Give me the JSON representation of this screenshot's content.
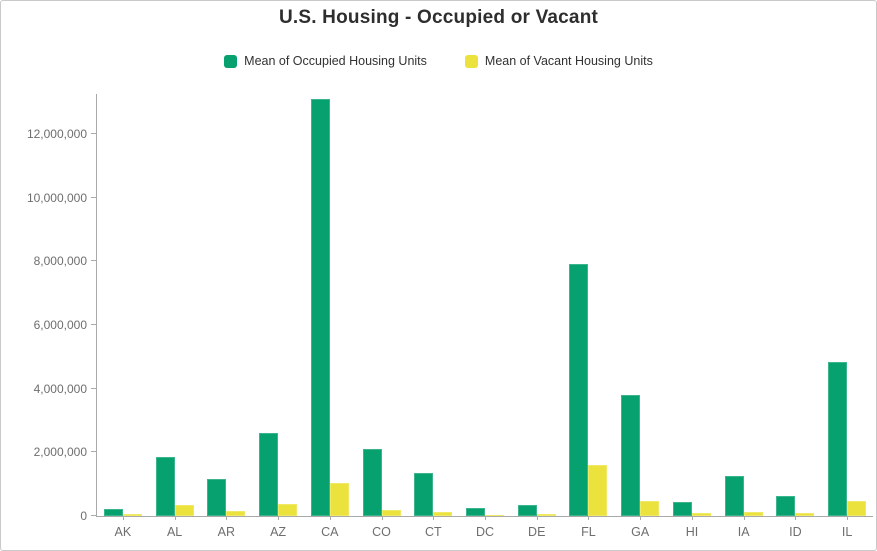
{
  "window": {
    "title": "U.S. Housing - Occupied or Vacant"
  },
  "chart_data": {
    "type": "bar",
    "title": "U.S. Housing - Occupied or Vacant",
    "xlabel": "",
    "ylabel": "",
    "categories": [
      "AK",
      "AL",
      "AR",
      "AZ",
      "CA",
      "CO",
      "CT",
      "DC",
      "DE",
      "FL",
      "GA",
      "HI",
      "IA",
      "ID",
      "IL"
    ],
    "series": [
      {
        "name": "Mean of Occupied Housing Units",
        "color": "#06a16e",
        "values": [
          220000,
          1850000,
          1150000,
          2600000,
          13100000,
          2100000,
          1350000,
          250000,
          330000,
          7900000,
          3800000,
          440000,
          1250000,
          640000,
          4850000
        ]
      },
      {
        "name": "Mean of Vacant Housing Units",
        "color": "#ece23d",
        "values": [
          50000,
          350000,
          170000,
          380000,
          1050000,
          180000,
          110000,
          30000,
          60000,
          1600000,
          470000,
          80000,
          110000,
          90000,
          480000
        ]
      }
    ],
    "ylim": [
      0,
      13250000
    ],
    "yticks": [
      0,
      2000000,
      4000000,
      6000000,
      8000000,
      10000000,
      12000000
    ],
    "ytick_labels": [
      "0",
      "2,000,000",
      "4,000,000",
      "6,000,000",
      "8,000,000",
      "10,000,000",
      "12,000,000"
    ],
    "grid": false,
    "legend_position": "top-center"
  },
  "colors": {
    "occupied": "#06a16e",
    "vacant": "#ece23d",
    "title_text": "#2e2e2e",
    "legend_text": "#323232",
    "axis_text": "#6e6e6e",
    "axis_line": "#a9a9a9",
    "frame_border": "#c9c9c9",
    "background": "#ffffff"
  }
}
